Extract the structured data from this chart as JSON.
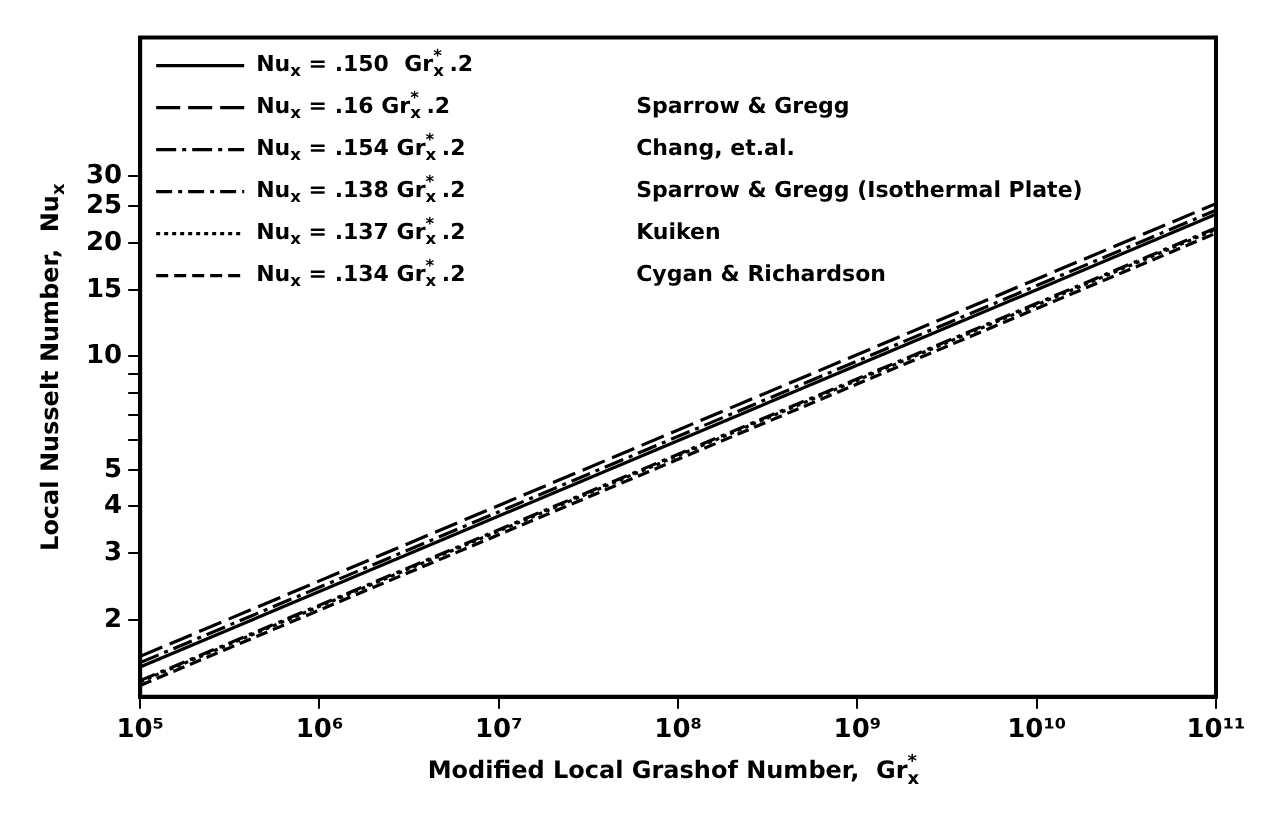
{
  "chart_data": {
    "type": "line",
    "xlabel": "Modified Local Grashof Number,  Gr$_{x}$$^{*}$",
    "ylabel": "Local Nusselt Number,  Nu$_{x}$",
    "log": "xy",
    "x": [
      100000,
      100000000000
    ],
    "xlim": [
      100000,
      100000000000
    ],
    "xticks": [
      {
        "value": 100000,
        "label": "10⁵"
      },
      {
        "value": 1000000,
        "label": "10⁶"
      },
      {
        "value": 10000000,
        "label": "10⁷"
      },
      {
        "value": 100000000,
        "label": "10⁸"
      },
      {
        "value": 1000000000,
        "label": "10⁹"
      },
      {
        "value": 10000000000,
        "label": "10¹⁰"
      },
      {
        "value": 100000000000,
        "label": "10¹¹"
      }
    ],
    "ylim": [
      1.25,
      70
    ],
    "yticks": [
      2,
      3,
      4,
      5,
      {
        "value": 6,
        "label": null
      },
      {
        "value": 7,
        "label": null
      },
      {
        "value": 8,
        "label": null
      },
      {
        "value": 9,
        "label": null
      },
      10,
      15,
      20,
      25,
      30
    ],
    "grid": false,
    "legend": "top left",
    "series": [
      {
        "name": "Nu$_{x}$ = .150  Gr$_{x}$$^{*}$ .2",
        "color": "#000000",
        "line_style": "solid",
        "values": [
          1.5,
          23.8
        ]
      },
      {
        "name": "Nu$_{x}$ = .16 Gr$_{x}$$^{*}$ .2",
        "color": "#000000",
        "line_style": "dashed",
        "values": [
          1.6,
          25.4
        ]
      },
      {
        "name": "Nu$_{x}$ = .154 Gr$_{x}$$^{*}$ .2",
        "color": "#000000",
        "line_style": "dashed",
        "values": [
          1.54,
          24.4
        ]
      },
      {
        "name": "Nu$_{x}$ = .138 Gr$_{x}$$^{*}$ .2",
        "color": "#000000",
        "line_style": "dashed",
        "values": [
          1.38,
          21.9
        ]
      },
      {
        "name": "Nu$_{x}$ = .137 Gr$_{x}$$^{*}$ .2",
        "color": "#000000",
        "line_style": "dotted",
        "values": [
          1.37,
          21.7
        ]
      },
      {
        "name": "Nu$_{x}$ = .134 Gr$_{x}$$^{*}$ .2",
        "color": "#000000",
        "line_style": "dashed",
        "values": [
          1.34,
          21.2
        ]
      }
    ],
    "annotations": [
      "Sparrow & Gregg",
      "Chang, et.al.",
      "Sparrow & Gregg (Isothermal Plate)",
      "Kuiken",
      "Cygan & Richardson"
    ]
  }
}
